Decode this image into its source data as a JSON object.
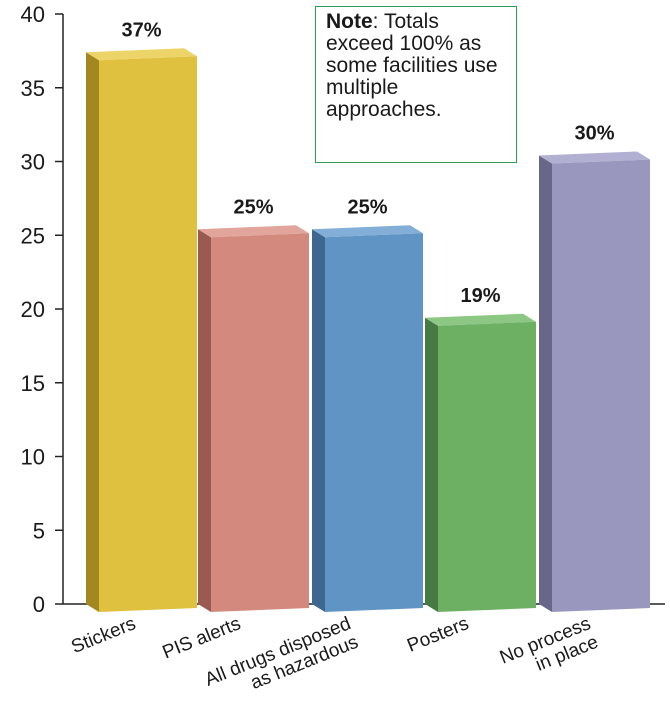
{
  "note": {
    "label": "Note",
    "text": ": Totals exceed 100% as some facilities use multiple approaches."
  },
  "chart_data": {
    "type": "bar",
    "title": "",
    "xlabel": "",
    "ylabel": "",
    "ylim": [
      0,
      40
    ],
    "yticks": [
      0,
      5,
      10,
      15,
      20,
      25,
      30,
      35,
      40
    ],
    "categories": [
      [
        "Stickers"
      ],
      [
        "PIS alerts"
      ],
      [
        "All drugs disposed",
        "as hazardous"
      ],
      [
        "Posters"
      ],
      [
        "No process",
        "in place"
      ]
    ],
    "values": [
      37,
      25,
      25,
      19,
      30
    ],
    "data_labels": [
      "37%",
      "25%",
      "25%",
      "19%",
      "30%"
    ],
    "colors": [
      {
        "front": "#e0c13f",
        "side": "#a3881f",
        "top": "#ecd468"
      },
      {
        "front": "#d4897e",
        "side": "#9a5a52",
        "top": "#e2a59b"
      },
      {
        "front": "#5f94c4",
        "side": "#3e6790",
        "top": "#82aed8"
      },
      {
        "front": "#6db064",
        "side": "#467a40",
        "top": "#8cc883"
      },
      {
        "front": "#9997bd",
        "side": "#686689",
        "top": "#b2b0d2"
      }
    ],
    "grid": false,
    "legend": "none",
    "style": "3d-bars"
  }
}
